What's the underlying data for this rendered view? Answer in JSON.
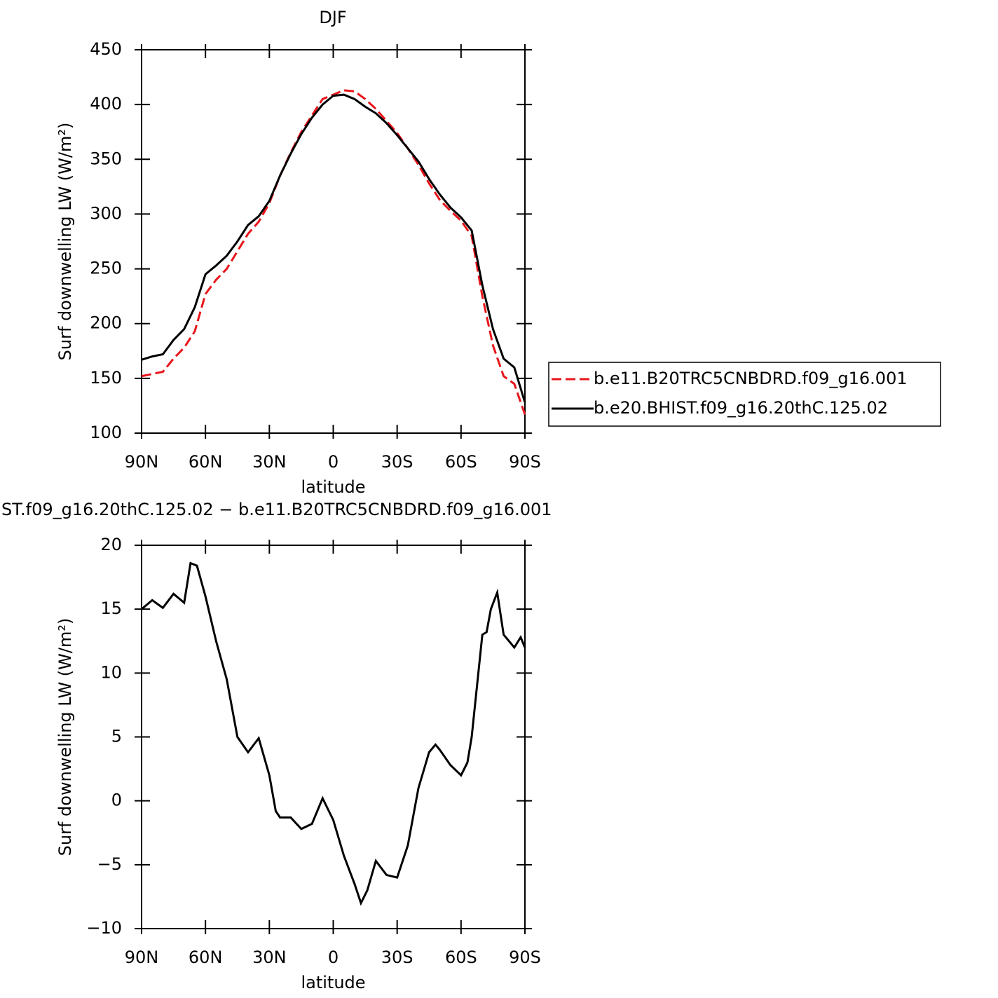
{
  "chart_data": [
    {
      "type": "line",
      "title": "DJF",
      "x_label": "latitude",
      "y_label": "Surf downwelling LW (W/m²)",
      "x": [
        90,
        85,
        80,
        75,
        70,
        65,
        60,
        55,
        50,
        45,
        40,
        35,
        30,
        25,
        20,
        15,
        10,
        5,
        0,
        -5,
        -10,
        -15,
        -20,
        -25,
        -30,
        -35,
        -40,
        -45,
        -50,
        -55,
        -60,
        -65,
        -70,
        -75,
        -80,
        -85,
        -90
      ],
      "series": [
        {
          "name": "b.e11.B20TRC5CNBDRD.f09_g16.001",
          "color": "#e8151b",
          "dash": true,
          "values": [
            152,
            154,
            156,
            168,
            178,
            193,
            227,
            240,
            250,
            266,
            282,
            293,
            310,
            335,
            356,
            375,
            390,
            405,
            409,
            413,
            412,
            405,
            396,
            385,
            374,
            360,
            345,
            328,
            313,
            303,
            294,
            280,
            225,
            180,
            152,
            145,
            117
          ]
        },
        {
          "name": "b.e20.BHIST.f09_g16.20thC.125.02",
          "color": "#000000",
          "dash": false,
          "values": [
            167,
            170,
            172,
            185,
            195,
            215,
            245,
            253,
            262,
            275,
            290,
            298,
            312,
            335,
            355,
            373,
            388,
            400,
            408,
            409,
            405,
            398,
            392,
            383,
            372,
            360,
            348,
            332,
            318,
            306,
            297,
            285,
            235,
            195,
            168,
            160,
            128
          ]
        }
      ],
      "xlim": [
        90,
        -90
      ],
      "xticks": [
        {
          "value": 90,
          "label": "90N"
        },
        {
          "value": 60,
          "label": "60N"
        },
        {
          "value": 30,
          "label": "30N"
        },
        0,
        {
          "value": -30,
          "label": "30S"
        },
        {
          "value": -60,
          "label": "60S"
        },
        {
          "value": -90,
          "label": "90S"
        }
      ],
      "ylim": [
        100,
        450
      ],
      "yticks": [
        100,
        150,
        200,
        250,
        300,
        350,
        400,
        450
      ]
    },
    {
      "type": "line",
      "title": "ST.f09_g16.20thC.125.02 − b.e11.B20TRC5CNBDRD.f09_g16.001",
      "x_label": "latitude",
      "y_label": "Surf downwelling LW (W/m²)",
      "x": [
        90,
        85,
        80,
        75,
        70,
        67,
        64,
        60,
        55,
        50,
        45,
        40,
        35,
        30,
        27,
        25,
        20,
        15,
        10,
        5,
        0,
        -5,
        -10,
        -13,
        -16,
        -20,
        -25,
        -30,
        -35,
        -40,
        -45,
        -48,
        -50,
        -55,
        -60,
        -63,
        -65,
        -70,
        -72,
        -74,
        -77,
        -80,
        -85,
        -88,
        -90
      ],
      "series": [
        {
          "color": "#000000",
          "values": [
            15,
            15.7,
            15.1,
            16.2,
            15.5,
            18.6,
            18.4,
            16,
            12.5,
            9.5,
            5,
            3.8,
            4.9,
            2,
            -0.8,
            -1.3,
            -1.3,
            -2.2,
            -1.8,
            0.2,
            -1.5,
            -4.3,
            -6.5,
            -8,
            -7,
            -4.7,
            -5.8,
            -6,
            -3.5,
            1,
            3.8,
            4.4,
            4,
            2.8,
            2,
            3,
            5,
            13,
            13.2,
            15,
            16.3,
            13,
            12,
            12.8,
            12
          ]
        }
      ],
      "xlim": [
        90,
        -90
      ],
      "xticks": [
        {
          "value": 90,
          "label": "90N"
        },
        {
          "value": 60,
          "label": "60N"
        },
        {
          "value": 30,
          "label": "30N"
        },
        0,
        {
          "value": -30,
          "label": "30S"
        },
        {
          "value": -60,
          "label": "60S"
        },
        {
          "value": -90,
          "label": "90S"
        }
      ],
      "ylim": [
        -10,
        20
      ],
      "yticks": [
        {
          "value": -10,
          "label": "−10"
        },
        {
          "value": -5,
          "label": "−5"
        },
        0,
        5,
        10,
        15,
        20
      ]
    }
  ]
}
